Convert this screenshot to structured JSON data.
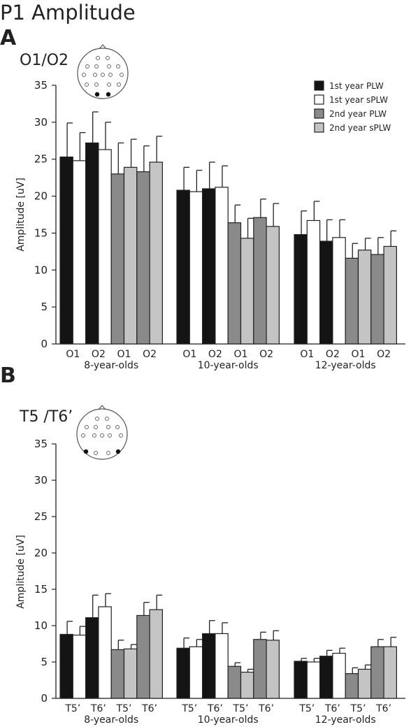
{
  "figure_title": "P1 Amplitude",
  "colors": {
    "plw1": "#141414",
    "splw1": "#ffffff",
    "plw2": "#8a8a8a",
    "splw2": "#c4c4c4",
    "axis": "#222222"
  },
  "legend": [
    {
      "name": "1st year PLW",
      "color": "#141414"
    },
    {
      "name": "1st year sPLW",
      "color": "#ffffff"
    },
    {
      "name": "2nd year PLW",
      "color": "#8a8a8a"
    },
    {
      "name": "2nd year sPLW",
      "color": "#c4c4c4"
    }
  ],
  "chart_data": [
    {
      "type": "bar",
      "panel_label": "A",
      "subtitle": "O1/O2",
      "ylabel": "Amplitude [uV]",
      "ylim": [
        0,
        35
      ],
      "yticks": [
        0,
        5,
        10,
        15,
        20,
        25,
        30,
        35
      ],
      "legend_position": "top-right",
      "groups": [
        {
          "label": "8-year-olds",
          "categories": [
            "O1",
            "O2",
            "O1",
            "O2"
          ],
          "bars": [
            {
              "series": "1st year PLW",
              "value": 25.3,
              "error": 4.6
            },
            {
              "series": "1st year sPLW",
              "value": 24.8,
              "error": 3.8
            },
            {
              "series": "1st year PLW",
              "value": 27.2,
              "error": 4.2
            },
            {
              "series": "1st year sPLW",
              "value": 26.3,
              "error": 3.7
            },
            {
              "series": "2nd year PLW",
              "value": 23.0,
              "error": 4.2
            },
            {
              "series": "2nd year sPLW",
              "value": 23.9,
              "error": 3.8
            },
            {
              "series": "2nd year PLW",
              "value": 23.3,
              "error": 3.5
            },
            {
              "series": "2nd year sPLW",
              "value": 24.6,
              "error": 3.5
            }
          ]
        },
        {
          "label": "10-year-olds",
          "categories": [
            "O1",
            "O2",
            "O1",
            "O2"
          ],
          "bars": [
            {
              "series": "1st year PLW",
              "value": 20.8,
              "error": 3.1
            },
            {
              "series": "1st year sPLW",
              "value": 20.6,
              "error": 2.9
            },
            {
              "series": "1st year PLW",
              "value": 21.0,
              "error": 3.6
            },
            {
              "series": "1st year sPLW",
              "value": 21.2,
              "error": 2.9
            },
            {
              "series": "2nd year PLW",
              "value": 16.4,
              "error": 2.4
            },
            {
              "series": "2nd year sPLW",
              "value": 14.3,
              "error": 2.7
            },
            {
              "series": "2nd year PLW",
              "value": 17.1,
              "error": 2.5
            },
            {
              "series": "2nd year sPLW",
              "value": 15.9,
              "error": 3.1
            }
          ]
        },
        {
          "label": "12-year-olds",
          "categories": [
            "O1",
            "O2",
            "O1",
            "O2"
          ],
          "bars": [
            {
              "series": "1st year PLW",
              "value": 14.8,
              "error": 3.2
            },
            {
              "series": "1st year sPLW",
              "value": 16.7,
              "error": 2.6
            },
            {
              "series": "1st year PLW",
              "value": 13.9,
              "error": 2.9
            },
            {
              "series": "1st year sPLW",
              "value": 14.4,
              "error": 2.4
            },
            {
              "series": "2nd year PLW",
              "value": 11.6,
              "error": 2.0
            },
            {
              "series": "2nd year sPLW",
              "value": 12.7,
              "error": 1.6
            },
            {
              "series": "2nd year PLW",
              "value": 12.1,
              "error": 2.3
            },
            {
              "series": "2nd year sPLW",
              "value": 13.2,
              "error": 2.1
            }
          ]
        }
      ]
    },
    {
      "type": "bar",
      "panel_label": "B",
      "subtitle": "T5 /T6’",
      "ylabel": "Amplitude [uV]",
      "ylim": [
        0,
        35
      ],
      "yticks": [
        0,
        5,
        10,
        15,
        20,
        25,
        30,
        35
      ],
      "groups": [
        {
          "label": "8-year-olds",
          "categories": [
            "T5’",
            "T6’",
            "T5’",
            "T6’"
          ],
          "bars": [
            {
              "series": "1st year PLW",
              "value": 8.8,
              "error": 1.8
            },
            {
              "series": "1st year sPLW",
              "value": 8.7,
              "error": 1.2
            },
            {
              "series": "1st year PLW",
              "value": 11.1,
              "error": 3.1
            },
            {
              "series": "1st year sPLW",
              "value": 12.6,
              "error": 1.8
            },
            {
              "series": "2nd year PLW",
              "value": 6.7,
              "error": 1.3
            },
            {
              "series": "2nd year sPLW",
              "value": 6.8,
              "error": 0.6
            },
            {
              "series": "2nd year PLW",
              "value": 11.4,
              "error": 1.8
            },
            {
              "series": "2nd year sPLW",
              "value": 12.2,
              "error": 2.0
            }
          ]
        },
        {
          "label": "10-year-olds",
          "categories": [
            "T5’",
            "T6’",
            "T5’",
            "T6’"
          ],
          "bars": [
            {
              "series": "1st year PLW",
              "value": 6.9,
              "error": 1.4
            },
            {
              "series": "1st year sPLW",
              "value": 7.1,
              "error": 1.0
            },
            {
              "series": "1st year PLW",
              "value": 8.9,
              "error": 1.8
            },
            {
              "series": "1st year sPLW",
              "value": 8.9,
              "error": 1.5
            },
            {
              "series": "2nd year PLW",
              "value": 4.4,
              "error": 0.5
            },
            {
              "series": "2nd year sPLW",
              "value": 3.6,
              "error": 0.4
            },
            {
              "series": "2nd year PLW",
              "value": 8.1,
              "error": 1.0
            },
            {
              "series": "2nd year sPLW",
              "value": 8.0,
              "error": 1.3
            }
          ]
        },
        {
          "label": "12-year-olds",
          "categories": [
            "T5’",
            "T6’",
            "T5’",
            "T6’"
          ],
          "bars": [
            {
              "series": "1st year PLW",
              "value": 5.1,
              "error": 0.4
            },
            {
              "series": "1st year sPLW",
              "value": 5.0,
              "error": 0.5
            },
            {
              "series": "1st year PLW",
              "value": 5.8,
              "error": 0.8
            },
            {
              "series": "1st year sPLW",
              "value": 6.2,
              "error": 0.7
            },
            {
              "series": "2nd year PLW",
              "value": 3.4,
              "error": 0.8
            },
            {
              "series": "2nd year sPLW",
              "value": 4.0,
              "error": 0.6
            },
            {
              "series": "2nd year PLW",
              "value": 7.1,
              "error": 1.0
            },
            {
              "series": "2nd year sPLW",
              "value": 7.1,
              "error": 1.3
            }
          ]
        }
      ]
    }
  ]
}
